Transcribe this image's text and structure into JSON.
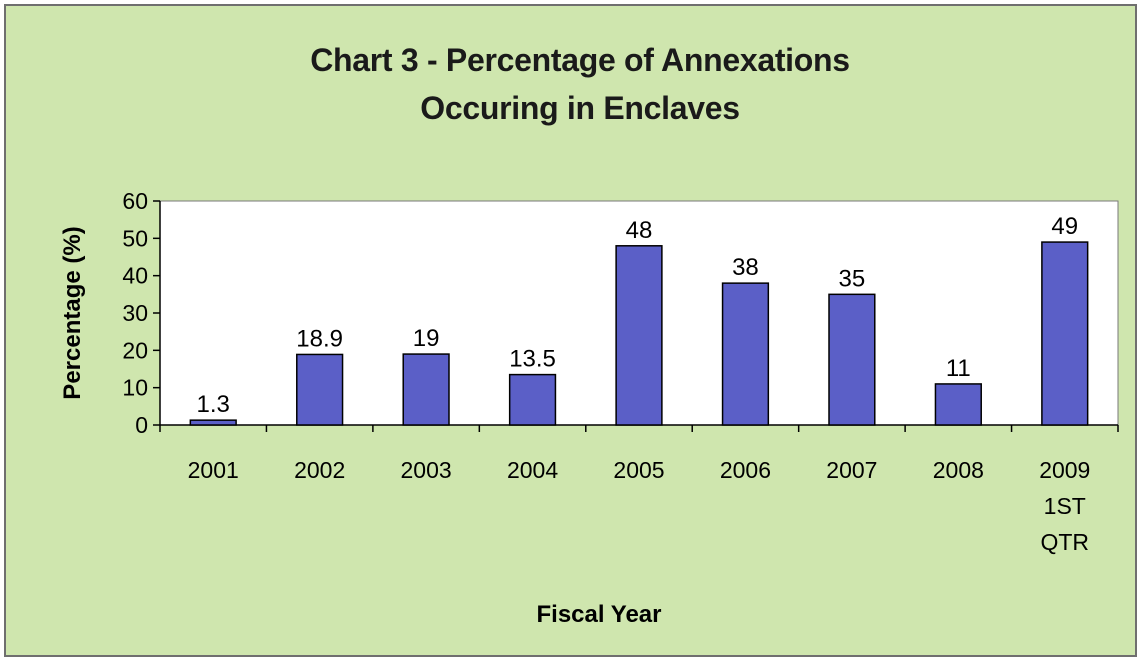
{
  "chart_data": {
    "type": "bar",
    "title": "Chart 3 - Percentage of Annexations\nOccuring in Enclaves",
    "xlabel": "Fiscal Year",
    "ylabel": "Percentage (%)",
    "categories": [
      "2001",
      "2002",
      "2003",
      "2004",
      "2005",
      "2006",
      "2007",
      "2008",
      "2009\n1ST\nQTR"
    ],
    "values": [
      1.3,
      18.9,
      19,
      13.5,
      48,
      38,
      35,
      11,
      49
    ],
    "data_labels": [
      "1.3",
      "18.9",
      "19",
      "13.5",
      "48",
      "38",
      "35",
      "11",
      "49"
    ],
    "ylim": [
      0,
      60
    ],
    "yticks": [
      "0",
      "10",
      "20",
      "30",
      "40",
      "50",
      "60"
    ],
    "grid": false,
    "legend": "none",
    "colors": {
      "bar": "#5b5fc7",
      "bar_edge": "#000000",
      "plot_bg": "#ffffff",
      "chart_bg": "#cfe6ae"
    }
  }
}
